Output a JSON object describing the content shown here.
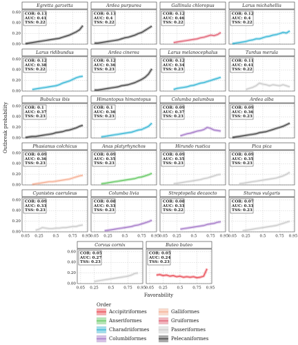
{
  "chart_data": {
    "type": "line",
    "y_label": "Outbreak probability",
    "x_label": "Favorability",
    "x": [
      0.05,
      0.1,
      0.15,
      0.2,
      0.25,
      0.3,
      0.35,
      0.4,
      0.45,
      0.5,
      0.55,
      0.6,
      0.65,
      0.7,
      0.75,
      0.8,
      0.85,
      0.9
    ],
    "xlim": [
      0.0,
      0.97
    ],
    "xticks": [
      0.05,
      0.25,
      0.5,
      0.75,
      0.95
    ],
    "ylim": [
      0,
      0.65
    ],
    "yticks": [
      {
        "value": 0,
        "label": "0.00"
      },
      {
        "value": 0.2,
        "label": "0.20"
      },
      {
        "value": 0.4,
        "label": "0.40"
      },
      {
        "value": 0.6,
        "label": "0.60"
      }
    ],
    "grid": true,
    "legend": {
      "title": "Order",
      "items": [
        {
          "name": "Accipitriformes",
          "color": "#e8424c"
        },
        {
          "name": "Anseriformes",
          "color": "#5cc55a"
        },
        {
          "name": "Charadriiformes",
          "color": "#2cb3d3"
        },
        {
          "name": "Columbiformes",
          "color": "#a072c6"
        },
        {
          "name": "Galliformes",
          "color": "#f5ab8e"
        },
        {
          "name": "Gruiformes",
          "color": "#e05a6e"
        },
        {
          "name": "Passeriformes",
          "color": "#c8c8c8"
        },
        {
          "name": "Pelecaniformes",
          "color": "#3a3a3a"
        }
      ]
    },
    "panels": [
      {
        "title": "Egretta garzetta",
        "annotations": [
          "COR: 0.13",
          "AUC: 0.41",
          "TSS: 0.22"
        ],
        "color": "#3a3a3a",
        "values": [
          0.01,
          0.02,
          0.03,
          0.04,
          0.05,
          0.06,
          0.07,
          0.08,
          0.09,
          0.1,
          0.11,
          0.13,
          0.15,
          0.17,
          0.2,
          0.23,
          0.27,
          0.35
        ]
      },
      {
        "title": "Ardea purpurea",
        "annotations": [
          "COR: 0.13",
          "AUC: 0.4",
          "TSS: 0.22"
        ],
        "color": "#3a3a3a",
        "values": [
          0.02,
          0.02,
          0.03,
          0.04,
          0.05,
          0.06,
          0.07,
          0.08,
          0.1,
          0.12,
          0.13,
          0.15,
          0.17,
          0.2,
          0.22,
          0.26,
          0.3,
          0.34
        ]
      },
      {
        "title": "Gallinula chloropus",
        "annotations": [
          "COR: 0.12",
          "AUC: 0.46",
          "TSS: 0.22"
        ],
        "color": "#e05a6e",
        "values": [
          null,
          null,
          null,
          0.03,
          0.04,
          0.05,
          0.06,
          0.07,
          0.08,
          0.09,
          0.1,
          0.12,
          0.13,
          0.15,
          0.17,
          0.16,
          0.18,
          0.22
        ]
      },
      {
        "title": "Larus michahellis",
        "annotations": [
          "COR: 0.12",
          "AUC: 0.4",
          "TSS: 0.22"
        ],
        "color": "#2cb3d3",
        "values": [
          0.01,
          0.02,
          0.03,
          0.04,
          0.05,
          0.07,
          0.08,
          0.1,
          0.1,
          0.12,
          0.14,
          0.15,
          0.17,
          0.18,
          0.2,
          0.22,
          0.21,
          0.25
        ]
      },
      {
        "title": "Larus ridibundus",
        "annotations": [
          "COR: 0.12",
          "AUC: 0.38",
          "TSS: 0.22"
        ],
        "color": "#2cb3d3",
        "values": [
          null,
          null,
          0.03,
          0.04,
          0.05,
          0.06,
          0.07,
          0.08,
          0.09,
          0.1,
          0.12,
          0.15,
          0.17,
          0.19,
          0.22,
          0.25,
          0.27,
          0.28
        ]
      },
      {
        "title": "Ardea cinerea",
        "annotations": [
          "COR: 0.12",
          "AUC: 0.36",
          "TSS: 0.23"
        ],
        "color": "#3a3a3a",
        "values": [
          0.02,
          0.02,
          0.03,
          0.04,
          0.05,
          0.06,
          0.07,
          0.08,
          0.1,
          0.11,
          0.12,
          0.14,
          0.16,
          0.19,
          0.22,
          0.26,
          0.32,
          0.42
        ]
      },
      {
        "title": "Larus melanocephalus",
        "annotations": [
          "COR: 0.12",
          "AUC: 0.34",
          "TSS: 0.23"
        ],
        "color": "#2cb3d3",
        "values": [
          null,
          null,
          null,
          0.03,
          0.05,
          0.06,
          0.07,
          0.08,
          0.1,
          0.11,
          0.13,
          0.15,
          0.16,
          0.18,
          0.2,
          0.22,
          0.24,
          0.26
        ]
      },
      {
        "title": "Turdus merula",
        "annotations": [
          "COR: 0.11",
          "AUC: 0.41",
          "TSS: 0.22"
        ],
        "color": "#c8c8c8",
        "values": [
          null,
          null,
          null,
          null,
          0.03,
          0.05,
          0.07,
          0.1,
          0.15,
          0.13,
          0.12,
          0.1,
          0.12,
          0.11,
          0.1,
          0.12,
          0.1,
          0.08
        ]
      },
      {
        "title": "Bubulcus ibis",
        "annotations": [
          "COR: 0.1",
          "AUC: 0.37",
          "TSS: 0.23"
        ],
        "color": "#3a3a3a",
        "values": [
          0.01,
          0.02,
          0.03,
          0.03,
          0.04,
          0.05,
          0.06,
          0.07,
          0.08,
          0.1,
          0.11,
          0.12,
          0.14,
          0.15,
          0.17,
          0.19,
          0.22,
          0.24
        ]
      },
      {
        "title": "Himantopus himantopus",
        "annotations": [
          "COR: 0.1",
          "AUC: 0.36",
          "TSS: 0.23"
        ],
        "color": "#2cb3d3",
        "values": [
          null,
          null,
          0.02,
          0.03,
          0.04,
          0.05,
          0.06,
          0.07,
          0.08,
          0.09,
          0.1,
          0.11,
          0.13,
          0.15,
          0.16,
          0.19,
          0.22,
          0.28
        ]
      },
      {
        "title": "Columba palumbus",
        "annotations": [
          "COR: 0.09",
          "AUC: 0.37",
          "TSS: 0.23"
        ],
        "color": "#a072c6",
        "values": [
          null,
          null,
          null,
          null,
          null,
          0.04,
          0.06,
          0.08,
          0.09,
          0.11,
          0.13,
          0.14,
          0.16,
          0.2,
          0.18,
          0.15,
          0.14,
          0.13
        ]
      },
      {
        "title": "Ardea alba",
        "annotations": [
          "COR: 0.09",
          "AUC: 0.36",
          "TSS: 0.23"
        ],
        "color": "#3a3a3a",
        "values": [
          0.01,
          0.02,
          0.03,
          0.04,
          0.05,
          0.06,
          0.07,
          0.08,
          0.1,
          0.11,
          0.12,
          0.14,
          0.16,
          0.18,
          0.2,
          0.22,
          0.25,
          0.28
        ]
      },
      {
        "title": "Phasianus colchicus",
        "annotations": [
          "COR: 0.09",
          "AUC: 0.36",
          "TSS: 0.23"
        ],
        "color": "#f5ab8e",
        "values": [
          null,
          null,
          0.01,
          0.02,
          0.03,
          0.04,
          0.05,
          0.06,
          0.06,
          0.07,
          0.08,
          0.09,
          0.1,
          0.11,
          0.13,
          0.15,
          0.17,
          0.18
        ]
      },
      {
        "title": "Anas platyrhynchos",
        "annotations": [
          "COR: 0.09",
          "AUC: 0.35",
          "TSS: 0.23"
        ],
        "color": "#5cc55a",
        "values": [
          null,
          null,
          0.02,
          0.03,
          0.04,
          0.05,
          0.06,
          0.07,
          0.08,
          0.09,
          0.1,
          0.11,
          0.12,
          0.14,
          0.15,
          0.17,
          0.19,
          0.22
        ]
      },
      {
        "title": "Hirundo rustica",
        "annotations": [
          "COR: 0.09",
          "AUC: 0.35",
          "TSS: 0.23"
        ],
        "color": "#c8c8c8",
        "values": [
          null,
          null,
          null,
          0.02,
          0.03,
          0.04,
          0.05,
          0.06,
          0.07,
          0.08,
          0.09,
          0.1,
          0.12,
          0.13,
          0.15,
          0.17,
          0.19,
          0.2
        ]
      },
      {
        "title": "Pica pica",
        "annotations": [
          "COR: 0.09",
          "AUC: 0.35",
          "TSS: 0.23"
        ],
        "color": "#c8c8c8",
        "values": [
          null,
          null,
          0.02,
          0.03,
          0.04,
          0.05,
          0.06,
          0.07,
          0.08,
          0.09,
          0.1,
          0.11,
          0.12,
          0.13,
          0.15,
          0.17,
          0.2,
          0.24
        ]
      },
      {
        "title": "Cyanistes caeruleus",
        "annotations": [
          "COR: 0.09",
          "AUC: 0.33",
          "TSS: 0.23"
        ],
        "color": "#c8c8c8",
        "values": [
          null,
          null,
          null,
          0.03,
          0.05,
          0.08,
          0.07,
          0.06,
          0.06,
          0.07,
          0.07,
          0.08,
          0.08,
          0.09,
          0.1,
          0.1,
          0.12,
          0.13
        ]
      },
      {
        "title": "Columba livia",
        "annotations": [
          "COR: 0.08",
          "AUC: 0.33",
          "TSS: 0.23"
        ],
        "color": "#a072c6",
        "values": [
          null,
          null,
          null,
          0.02,
          0.03,
          0.04,
          0.05,
          0.06,
          0.07,
          0.08,
          0.09,
          0.1,
          0.12,
          0.13,
          0.15,
          0.17,
          0.19,
          0.22
        ]
      },
      {
        "title": "Streptopelia decaocto",
        "annotations": [
          "COR: 0.08",
          "AUC: 0.33",
          "TSS: 0.22"
        ],
        "color": "#a072c6",
        "values": [
          null,
          null,
          null,
          null,
          null,
          0.05,
          0.06,
          0.07,
          0.08,
          0.09,
          0.1,
          0.11,
          0.12,
          0.14,
          0.15,
          0.16,
          0.18,
          0.19
        ]
      },
      {
        "title": "Sturnus vulgaris",
        "annotations": [
          "COR: 0.07",
          "AUC: 0.33",
          "TSS: 0.23"
        ],
        "color": "#c8c8c8",
        "values": [
          null,
          null,
          null,
          0.02,
          0.03,
          0.04,
          0.05,
          0.06,
          0.07,
          0.08,
          0.09,
          0.1,
          0.11,
          0.12,
          0.14,
          0.16,
          0.18,
          0.2
        ]
      },
      {
        "title": "Corvus cornix",
        "annotations": [
          "COR: 0.05",
          "AUC: 0.27",
          "TSS: 0.23"
        ],
        "color": "#c8c8c8",
        "values": [
          null,
          null,
          null,
          null,
          0.04,
          0.05,
          0.06,
          0.07,
          0.08,
          0.09,
          0.1,
          0.11,
          0.12,
          0.13,
          0.14,
          0.16,
          0.19,
          0.2
        ]
      },
      {
        "title": "Buteo buteo",
        "annotations": [
          "COR: 0.05",
          "AUC: 0.24",
          "TSS: 0.23"
        ],
        "color": "#e8424c",
        "values": [
          null,
          null,
          0.16,
          0.17,
          0.15,
          0.16,
          0.14,
          0.15,
          0.13,
          0.14,
          0.12,
          0.13,
          0.12,
          0.13,
          0.11,
          0.12,
          0.14,
          0.28
        ]
      }
    ]
  }
}
